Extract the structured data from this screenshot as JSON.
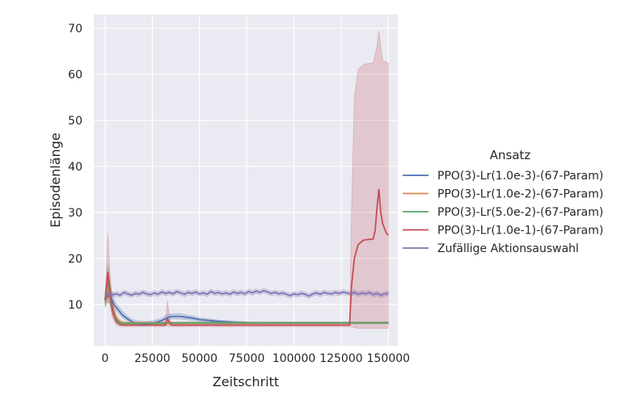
{
  "chart_data": {
    "type": "line",
    "xlabel": "Zeitschritt",
    "ylabel": "Episodenlänge",
    "xlim": [
      -6000,
      155000
    ],
    "ylim": [
      1,
      73
    ],
    "xticks": [
      0,
      25000,
      50000,
      75000,
      100000,
      125000,
      150000
    ],
    "xtick_labels": [
      "0",
      "25000",
      "50000",
      "75000",
      "100000",
      "125000",
      "150000"
    ],
    "yticks": [
      10,
      20,
      30,
      40,
      50,
      60,
      70
    ],
    "ytick_labels": [
      "10",
      "20",
      "30",
      "40",
      "50",
      "60",
      "70"
    ],
    "grid": true,
    "background": "#eaeaf2",
    "legend": {
      "title": "Ansatz",
      "placement": "outside-right"
    },
    "series": [
      {
        "name": "PPO(3)-Lr(1.0e-3)-(67-Param)",
        "color": "#4c72b0",
        "points": [
          [
            0,
            10.5
          ],
          [
            1500,
            12
          ],
          [
            3000,
            11.5
          ],
          [
            5000,
            9.8
          ],
          [
            7000,
            8.8
          ],
          [
            9000,
            7.8
          ],
          [
            12000,
            6.8
          ],
          [
            15000,
            6.1
          ],
          [
            20000,
            5.8
          ],
          [
            25000,
            5.9
          ],
          [
            30000,
            6.5
          ],
          [
            33000,
            7.1
          ],
          [
            35000,
            7.4
          ],
          [
            40000,
            7.4
          ],
          [
            45000,
            7.1
          ],
          [
            50000,
            6.7
          ],
          [
            55000,
            6.5
          ],
          [
            60000,
            6.3
          ],
          [
            70000,
            6.1
          ],
          [
            80000,
            6.0
          ],
          [
            100000,
            6.0
          ],
          [
            125000,
            6.0
          ],
          [
            150000,
            6.0
          ]
        ],
        "band": [
          [
            0,
            9.5,
            11.5
          ],
          [
            1500,
            10.5,
            14
          ],
          [
            3000,
            10,
            13.5
          ],
          [
            5000,
            9,
            10.8
          ],
          [
            7000,
            8.2,
            9.6
          ],
          [
            9000,
            7.2,
            8.6
          ],
          [
            12000,
            6.3,
            7.4
          ],
          [
            15000,
            5.7,
            6.6
          ],
          [
            20000,
            5.4,
            6.3
          ],
          [
            25000,
            5.5,
            6.4
          ],
          [
            30000,
            6.0,
            7.0
          ],
          [
            33000,
            6.6,
            7.8
          ],
          [
            35000,
            6.9,
            8.0
          ],
          [
            40000,
            6.8,
            8.0
          ],
          [
            45000,
            6.6,
            7.6
          ],
          [
            50000,
            6.3,
            7.1
          ],
          [
            55000,
            6.1,
            6.9
          ],
          [
            60000,
            6.0,
            6.6
          ],
          [
            70000,
            5.9,
            6.3
          ],
          [
            80000,
            5.9,
            6.1
          ],
          [
            100000,
            5.9,
            6.1
          ],
          [
            125000,
            5.9,
            6.1
          ],
          [
            150000,
            5.9,
            6.1
          ]
        ]
      },
      {
        "name": "PPO(3)-Lr(1.0e-2)-(67-Param)",
        "color": "#dd8452",
        "points": [
          [
            0,
            10.5
          ],
          [
            1500,
            14
          ],
          [
            2500,
            12
          ],
          [
            4000,
            9
          ],
          [
            6000,
            7
          ],
          [
            8000,
            6.2
          ],
          [
            10000,
            6.0
          ],
          [
            20000,
            6.0
          ],
          [
            40000,
            6.0
          ],
          [
            75000,
            6.0
          ],
          [
            100000,
            6.0
          ],
          [
            150000,
            6.0
          ]
        ],
        "band": [
          [
            0,
            9.5,
            11.5
          ],
          [
            1500,
            11,
            18
          ],
          [
            2500,
            10,
            15
          ],
          [
            4000,
            7.5,
            10.5
          ],
          [
            6000,
            6.2,
            7.8
          ],
          [
            8000,
            5.8,
            6.6
          ],
          [
            10000,
            5.8,
            6.2
          ],
          [
            150000,
            5.8,
            6.2
          ]
        ]
      },
      {
        "name": "PPO(3)-Lr(5.0e-2)-(67-Param)",
        "color": "#55a868",
        "points": [
          [
            0,
            11
          ],
          [
            1500,
            15
          ],
          [
            2500,
            12.5
          ],
          [
            4000,
            8.5
          ],
          [
            6000,
            6.6
          ],
          [
            8000,
            6.0
          ],
          [
            10000,
            5.9
          ],
          [
            20000,
            5.9
          ],
          [
            40000,
            6.0
          ],
          [
            75000,
            6.0
          ],
          [
            100000,
            6.0
          ],
          [
            150000,
            6.0
          ]
        ],
        "band": [
          [
            0,
            10,
            12
          ],
          [
            1500,
            12,
            19
          ],
          [
            2500,
            10.5,
            15
          ],
          [
            4000,
            7.5,
            10
          ],
          [
            6000,
            6.0,
            7.2
          ],
          [
            8000,
            5.7,
            6.3
          ],
          [
            10000,
            5.7,
            6.1
          ],
          [
            150000,
            5.8,
            6.2
          ]
        ]
      },
      {
        "name": "PPO(3)-Lr(1.0e-1)-(67-Param)",
        "color": "#c44e52",
        "points": [
          [
            0,
            11
          ],
          [
            1500,
            17
          ],
          [
            2500,
            13
          ],
          [
            4000,
            8.5
          ],
          [
            6000,
            6.2
          ],
          [
            8000,
            5.6
          ],
          [
            10000,
            5.5
          ],
          [
            20000,
            5.5
          ],
          [
            32000,
            5.5
          ],
          [
            33000,
            6.8
          ],
          [
            34000,
            6.2
          ],
          [
            35000,
            5.5
          ],
          [
            60000,
            5.5
          ],
          [
            100000,
            5.5
          ],
          [
            129500,
            5.5
          ],
          [
            130500,
            14
          ],
          [
            132000,
            20
          ],
          [
            134000,
            23
          ],
          [
            137000,
            24
          ],
          [
            142000,
            24.2
          ],
          [
            143000,
            26
          ],
          [
            144000,
            31
          ],
          [
            145000,
            35
          ],
          [
            146000,
            30
          ],
          [
            147000,
            27.5
          ],
          [
            149000,
            25.5
          ],
          [
            150000,
            25
          ]
        ],
        "band": [
          [
            0,
            10,
            12
          ],
          [
            1500,
            12,
            25.5
          ],
          [
            2500,
            10,
            17
          ],
          [
            4000,
            7,
            10
          ],
          [
            6000,
            5.5,
            7
          ],
          [
            8000,
            5.2,
            6
          ],
          [
            10000,
            5.2,
            5.8
          ],
          [
            32000,
            5.2,
            5.8
          ],
          [
            33000,
            5.3,
            10.8
          ],
          [
            34000,
            5.2,
            7.5
          ],
          [
            35000,
            5.2,
            5.8
          ],
          [
            129500,
            5.2,
            5.8
          ],
          [
            130500,
            5.2,
            30
          ],
          [
            132000,
            5.0,
            55
          ],
          [
            134000,
            4.8,
            61
          ],
          [
            137000,
            4.8,
            62.2
          ],
          [
            142000,
            4.8,
            62.5
          ],
          [
            144000,
            4.8,
            66
          ],
          [
            145000,
            4.8,
            69.5
          ],
          [
            146000,
            4.8,
            66
          ],
          [
            147000,
            4.8,
            63
          ],
          [
            150000,
            4.8,
            62.5
          ]
        ]
      },
      {
        "name": "Zufällige Aktionsauswahl",
        "color": "#8172b3",
        "points": [
          [
            0,
            12.2
          ],
          [
            2000,
            12.5
          ],
          [
            4000,
            12.1
          ],
          [
            6000,
            12.3
          ],
          [
            8000,
            12.0
          ],
          [
            10000,
            12.6
          ],
          [
            12000,
            12.3
          ],
          [
            14000,
            12.0
          ],
          [
            16000,
            12.4
          ],
          [
            18000,
            12.2
          ],
          [
            20000,
            12.6
          ],
          [
            22000,
            12.3
          ],
          [
            24000,
            12.1
          ],
          [
            26000,
            12.5
          ],
          [
            28000,
            12.2
          ],
          [
            30000,
            12.7
          ],
          [
            32000,
            12.4
          ],
          [
            34000,
            12.6
          ],
          [
            36000,
            12.3
          ],
          [
            38000,
            12.8
          ],
          [
            40000,
            12.5
          ],
          [
            42000,
            12.2
          ],
          [
            44000,
            12.6
          ],
          [
            46000,
            12.4
          ],
          [
            48000,
            12.7
          ],
          [
            50000,
            12.3
          ],
          [
            52000,
            12.5
          ],
          [
            54000,
            12.2
          ],
          [
            56000,
            12.8
          ],
          [
            58000,
            12.4
          ],
          [
            60000,
            12.6
          ],
          [
            62000,
            12.3
          ],
          [
            64000,
            12.5
          ],
          [
            66000,
            12.2
          ],
          [
            68000,
            12.7
          ],
          [
            70000,
            12.4
          ],
          [
            72000,
            12.6
          ],
          [
            74000,
            12.3
          ],
          [
            76000,
            12.8
          ],
          [
            78000,
            12.5
          ],
          [
            80000,
            12.9
          ],
          [
            82000,
            12.6
          ],
          [
            84000,
            13.0
          ],
          [
            86000,
            12.7
          ],
          [
            88000,
            12.4
          ],
          [
            90000,
            12.6
          ],
          [
            92000,
            12.3
          ],
          [
            94000,
            12.5
          ],
          [
            96000,
            12.2
          ],
          [
            98000,
            11.9
          ],
          [
            100000,
            12.3
          ],
          [
            102000,
            12.1
          ],
          [
            104000,
            12.4
          ],
          [
            106000,
            12.2
          ],
          [
            108000,
            11.8
          ],
          [
            110000,
            12.3
          ],
          [
            112000,
            12.5
          ],
          [
            114000,
            12.2
          ],
          [
            116000,
            12.6
          ],
          [
            118000,
            12.4
          ],
          [
            120000,
            12.3
          ],
          [
            122000,
            12.6
          ],
          [
            124000,
            12.4
          ],
          [
            126000,
            12.7
          ],
          [
            128000,
            12.5
          ],
          [
            130000,
            12.3
          ],
          [
            132000,
            12.6
          ],
          [
            134000,
            12.2
          ],
          [
            136000,
            12.5
          ],
          [
            138000,
            12.3
          ],
          [
            140000,
            12.6
          ],
          [
            142000,
            12.1
          ],
          [
            144000,
            12.4
          ],
          [
            146000,
            12.0
          ],
          [
            148000,
            12.3
          ],
          [
            150000,
            12.4
          ]
        ],
        "band_width": 0.5
      }
    ]
  }
}
